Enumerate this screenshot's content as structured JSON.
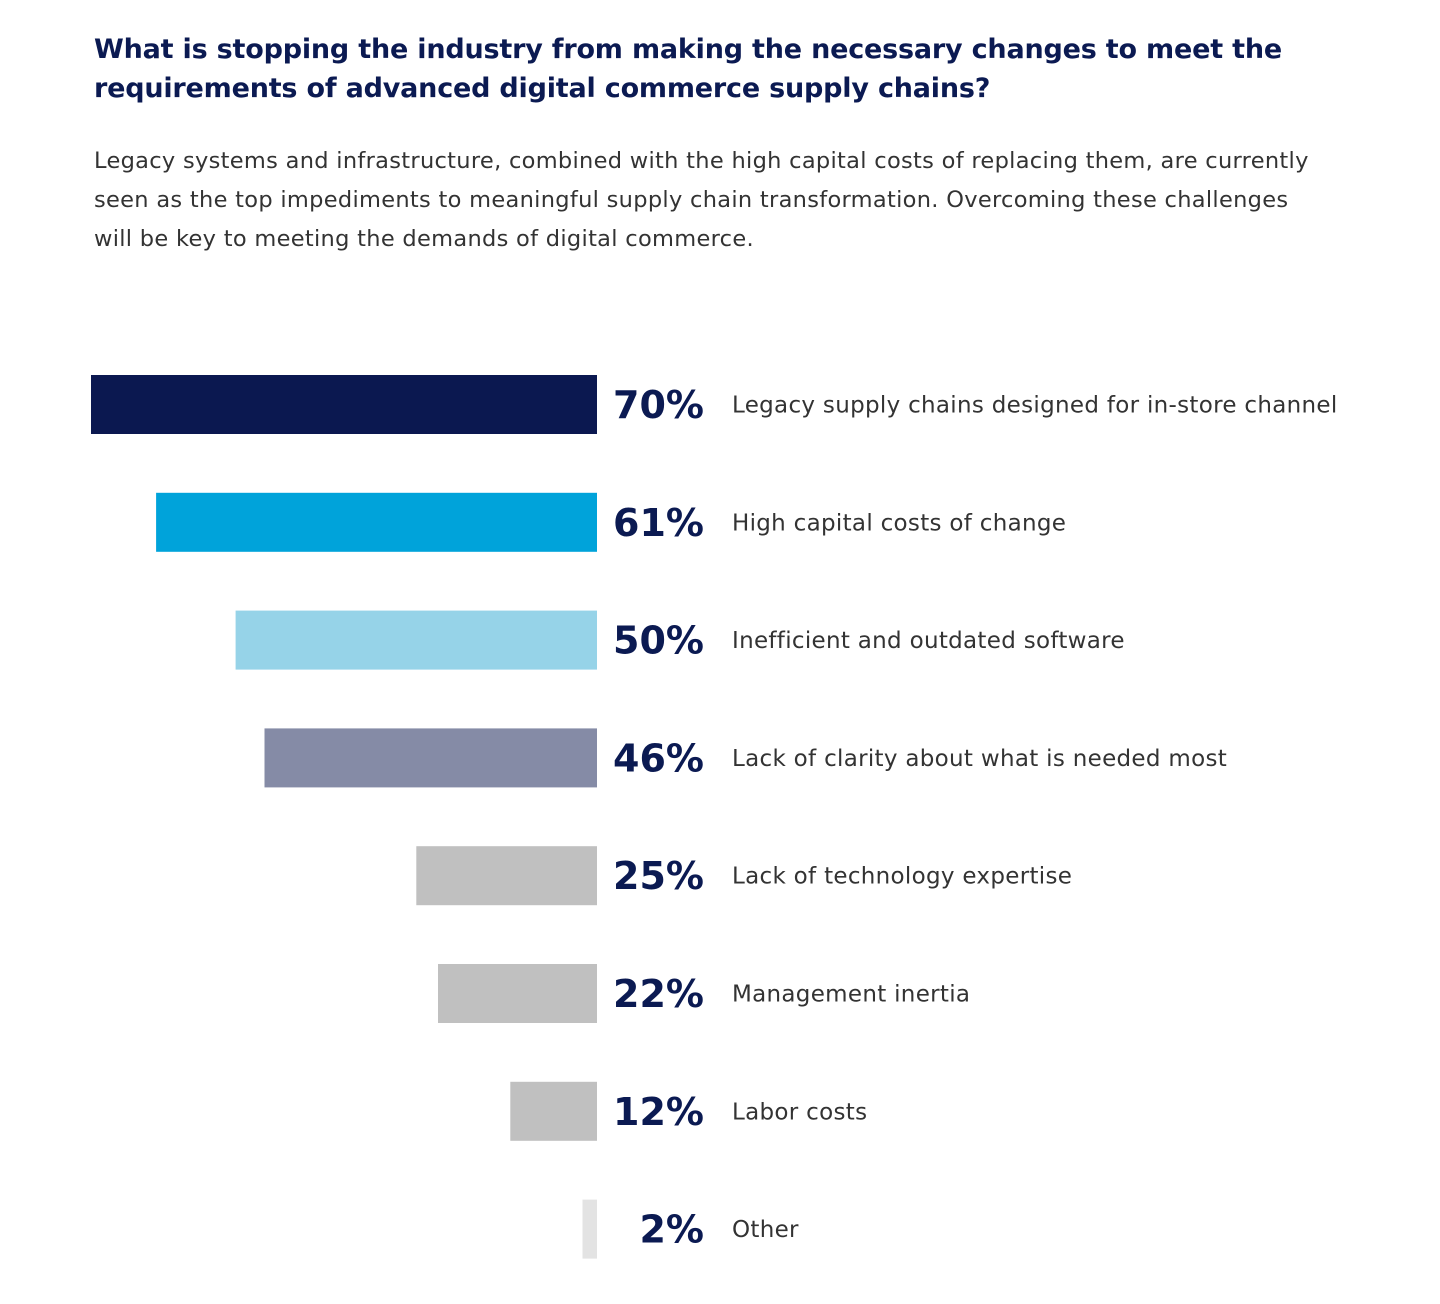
{
  "header": {
    "title": "What is stopping the industry from making the necessary changes to meet the requirements of advanced digital commerce supply chains?",
    "subtitle": "Legacy systems and infrastructure, combined with the high capital costs of replacing them, are currently seen as the top impediments to meaningful supply chain transformation. Overcoming these challenges will be key to meeting the demands of digital commerce."
  },
  "chart_data": {
    "type": "bar",
    "orientation": "horizontal",
    "title": "What is stopping the industry from making the necessary changes to meet the requirements of advanced digital commerce supply chains?",
    "xlabel": "",
    "ylabel": "",
    "xlim": [
      0,
      70
    ],
    "grid": false,
    "unit": "%",
    "categories": [
      "Legacy supply chains designed for in-store channel",
      "High capital costs of change",
      "Inefficient and outdated software",
      "Lack of clarity about what is needed most",
      "Lack of technology expertise",
      "Management inertia",
      "Labor costs",
      "Other"
    ],
    "values": [
      70,
      61,
      50,
      46,
      25,
      22,
      12,
      2
    ],
    "value_labels": [
      "70%",
      "61%",
      "50%",
      "46%",
      "25%",
      "22%",
      "12%",
      "2%"
    ],
    "colors": [
      "#0b1850",
      "#00a3da",
      "#96d3e8",
      "#858ba6",
      "#c0c0c0",
      "#c0c0c0",
      "#c0c0c0",
      "#e3e3e3"
    ]
  }
}
